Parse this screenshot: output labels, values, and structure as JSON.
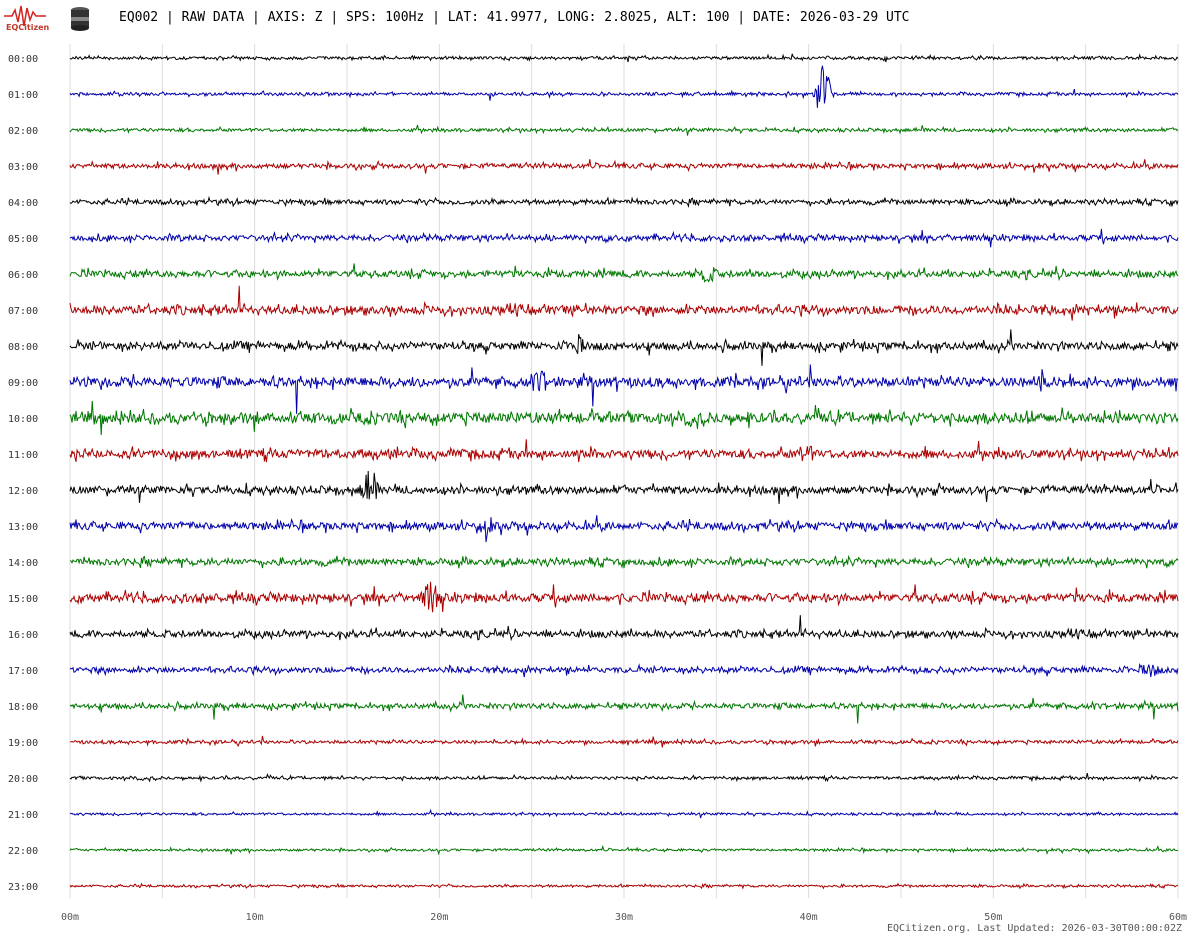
{
  "header": {
    "logo_text": "EQCitizen",
    "title": "EQ002 | RAW DATA | AXIS: Z | SPS: 100Hz | LAT: 41.9977, LONG: 2.8025, ALT: 100 | DATE: 2026-03-29 UTC"
  },
  "footer": {
    "text": "EQCitizen.org. Last Updated: 2026-03-30T00:00:02Z"
  },
  "chart_data": {
    "type": "line",
    "title": "",
    "xlabel": "",
    "ylabel": "",
    "x_ticks": [
      "00m",
      "10m",
      "20m",
      "30m",
      "40m",
      "50m",
      "60m"
    ],
    "xlim": [
      0,
      60
    ],
    "grid": true,
    "colors": [
      "#000000",
      "#0000aa",
      "#007700",
      "#aa0000"
    ],
    "rows": [
      "00:00",
      "01:00",
      "02:00",
      "03:00",
      "04:00",
      "05:00",
      "06:00",
      "07:00",
      "08:00",
      "09:00",
      "10:00",
      "11:00",
      "12:00",
      "13:00",
      "14:00",
      "15:00",
      "16:00",
      "17:00",
      "18:00",
      "19:00",
      "20:00",
      "21:00",
      "22:00",
      "23:00"
    ],
    "amplitude": [
      0.3,
      0.3,
      0.35,
      0.5,
      0.5,
      0.6,
      0.7,
      0.9,
      0.8,
      1.0,
      1.1,
      0.9,
      0.8,
      0.8,
      0.7,
      0.9,
      0.7,
      0.6,
      0.55,
      0.35,
      0.3,
      0.25,
      0.25,
      0.25
    ],
    "events": [
      {
        "row": 1,
        "minute": 40.8,
        "amp": 7.5
      },
      {
        "row": 12,
        "minute": 16.2,
        "amp": 4.0
      },
      {
        "row": 13,
        "minute": 22.5,
        "amp": 2.0
      },
      {
        "row": 15,
        "minute": 19.5,
        "amp": 3.5
      },
      {
        "row": 9,
        "minute": 25.5,
        "amp": 2.2
      },
      {
        "row": 9,
        "minute": 52.5,
        "amp": 2.0
      },
      {
        "row": 6,
        "minute": 34.5,
        "amp": 2.0
      },
      {
        "row": 11,
        "minute": 39.8,
        "amp": 2.2
      },
      {
        "row": 8,
        "minute": 27.5,
        "amp": 1.6
      },
      {
        "row": 17,
        "minute": 58.5,
        "amp": 1.6
      }
    ]
  }
}
